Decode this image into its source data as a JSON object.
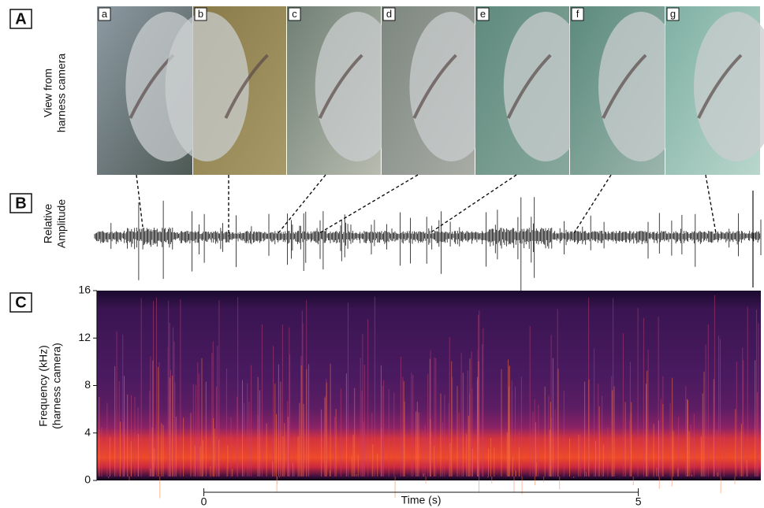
{
  "panels": {
    "A": {
      "label": "A",
      "ylabel": [
        "View from",
        "harness camera"
      ],
      "photos": [
        "a",
        "b",
        "c",
        "d",
        "e",
        "f",
        "g"
      ]
    },
    "B": {
      "label": "B",
      "ylabel": [
        "Relative",
        "Amplitude"
      ]
    },
    "C": {
      "label": "C",
      "ylabel": [
        "Frequency (kHz)",
        "(harness camera)"
      ],
      "ylim": [
        0,
        16
      ],
      "yticks": [
        0,
        4,
        8,
        12,
        16
      ],
      "xlabel": "Time (s)",
      "xlim": [
        -1.23,
        6.41
      ],
      "xticks": [
        0,
        5
      ]
    }
  }
}
